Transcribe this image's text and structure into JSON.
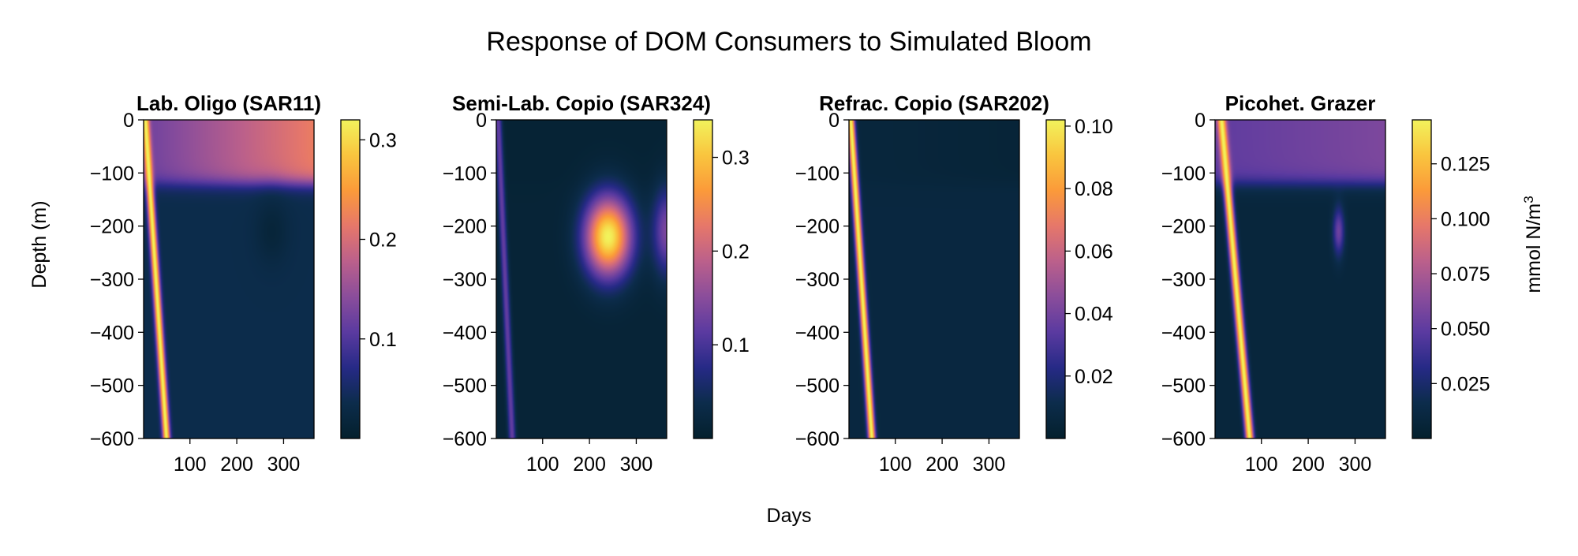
{
  "figure": {
    "title": "Response of DOM Consumers to Simulated Bloom",
    "xlabel": "Days",
    "ylabel": "Depth (m)",
    "colorbar_label": "mmol N/m",
    "colorbar_label_sup": "3"
  },
  "colormap": [
    "#04202d",
    "#0c2c4b",
    "#262a86",
    "#5a3aa0",
    "#8a4d9b",
    "#bb608b",
    "#e6776a",
    "#fb9a3a",
    "#f9c53e",
    "#f2f35c"
  ],
  "chart_data": [
    {
      "type": "heatmap",
      "title": "Lab. Oligo (SAR11)",
      "xlim": [
        1,
        365
      ],
      "ylim": [
        -600,
        0
      ],
      "xticks": [
        100,
        200,
        300
      ],
      "yticks": [
        0,
        -100,
        -200,
        -300,
        -400,
        -500,
        -600
      ],
      "ytick_labels": [
        "0",
        "−100",
        "−200",
        "−300",
        "−400",
        "−500",
        "−600"
      ],
      "color_range": [
        0,
        0.32
      ],
      "colorbar_ticks": [
        0.1,
        0.2,
        0.3
      ],
      "colorbar_labels": [
        "0.1",
        "0.2",
        "0.3"
      ],
      "surface_layer": {
        "depth": -120,
        "value_start": 0.12,
        "value_end": 0.22
      },
      "deep_background": 0.035,
      "front": {
        "day_at_surface": 5,
        "day_at_bottom": 50,
        "peak": 0.32,
        "width_days": 8
      },
      "features": [
        {
          "day": 275,
          "depth": -210,
          "value": 0.015,
          "width_days": 35,
          "height_m": 60
        }
      ]
    },
    {
      "type": "heatmap",
      "title": "Semi-Lab. Copio (SAR324)",
      "xlim": [
        1,
        365
      ],
      "ylim": [
        -600,
        0
      ],
      "xticks": [
        100,
        200,
        300
      ],
      "yticks": [
        0,
        -100,
        -200,
        -300,
        -400,
        -500,
        -600
      ],
      "ytick_labels": [
        "0",
        "−100",
        "−200",
        "−300",
        "−400",
        "−500",
        "−600"
      ],
      "color_range": [
        0,
        0.34
      ],
      "colorbar_ticks": [
        0.1,
        0.2,
        0.3
      ],
      "colorbar_labels": [
        "0.1",
        "0.2",
        "0.3"
      ],
      "surface_layer": {
        "depth": -120,
        "value_start": 0.01,
        "value_end": 0.01
      },
      "deep_background": 0.012,
      "front": {
        "day_at_surface": 5,
        "day_at_bottom": 35,
        "peak": 0.12,
        "width_days": 8
      },
      "features": [
        {
          "day": 240,
          "depth": -220,
          "value": 0.34,
          "width_days": 50,
          "height_m": 75
        },
        {
          "day": 365,
          "depth": -210,
          "value": 0.14,
          "width_days": 30,
          "height_m": 80
        }
      ]
    },
    {
      "type": "heatmap",
      "title": "Refrac. Copio (SAR202)",
      "xlim": [
        1,
        365
      ],
      "ylim": [
        -600,
        0
      ],
      "xticks": [
        100,
        200,
        300
      ],
      "yticks": [
        0,
        -100,
        -200,
        -300,
        -400,
        -500,
        -600
      ],
      "ytick_labels": [
        "0",
        "−100",
        "−200",
        "−300",
        "−400",
        "−500",
        "−600"
      ],
      "color_range": [
        0,
        0.102
      ],
      "colorbar_ticks": [
        0.02,
        0.04,
        0.06,
        0.08,
        0.1
      ],
      "colorbar_labels": [
        "0.02",
        "0.04",
        "0.06",
        "0.08",
        "0.10"
      ],
      "surface_layer": {
        "depth": -120,
        "value_start": 0.006,
        "value_end": 0.004
      },
      "deep_background": 0.007,
      "front": {
        "day_at_surface": 5,
        "day_at_bottom": 50,
        "peak": 0.102,
        "width_days": 8
      },
      "features": []
    },
    {
      "type": "heatmap",
      "title": "Picohet. Grazer",
      "xlim": [
        1,
        365
      ],
      "ylim": [
        -600,
        0
      ],
      "xticks": [
        100,
        200,
        300
      ],
      "yticks": [
        0,
        -100,
        -200,
        -300,
        -400,
        -500,
        -600
      ],
      "ytick_labels": [
        "0",
        "−100",
        "−200",
        "−300",
        "−400",
        "−500",
        "−600"
      ],
      "color_range": [
        0,
        0.145
      ],
      "colorbar_ticks": [
        0.025,
        0.05,
        0.075,
        0.1,
        0.125
      ],
      "colorbar_labels": [
        "0.025",
        "0.050",
        "0.075",
        "0.100",
        "0.125"
      ],
      "surface_layer": {
        "depth": -120,
        "value_start": 0.05,
        "value_end": 0.06
      },
      "deep_background": 0.008,
      "front": {
        "day_at_surface": 15,
        "day_at_bottom": 75,
        "peak": 0.145,
        "width_days": 9
      },
      "features": [
        {
          "day": 265,
          "depth": -210,
          "value": 0.055,
          "width_days": 12,
          "height_m": 45
        }
      ]
    }
  ]
}
